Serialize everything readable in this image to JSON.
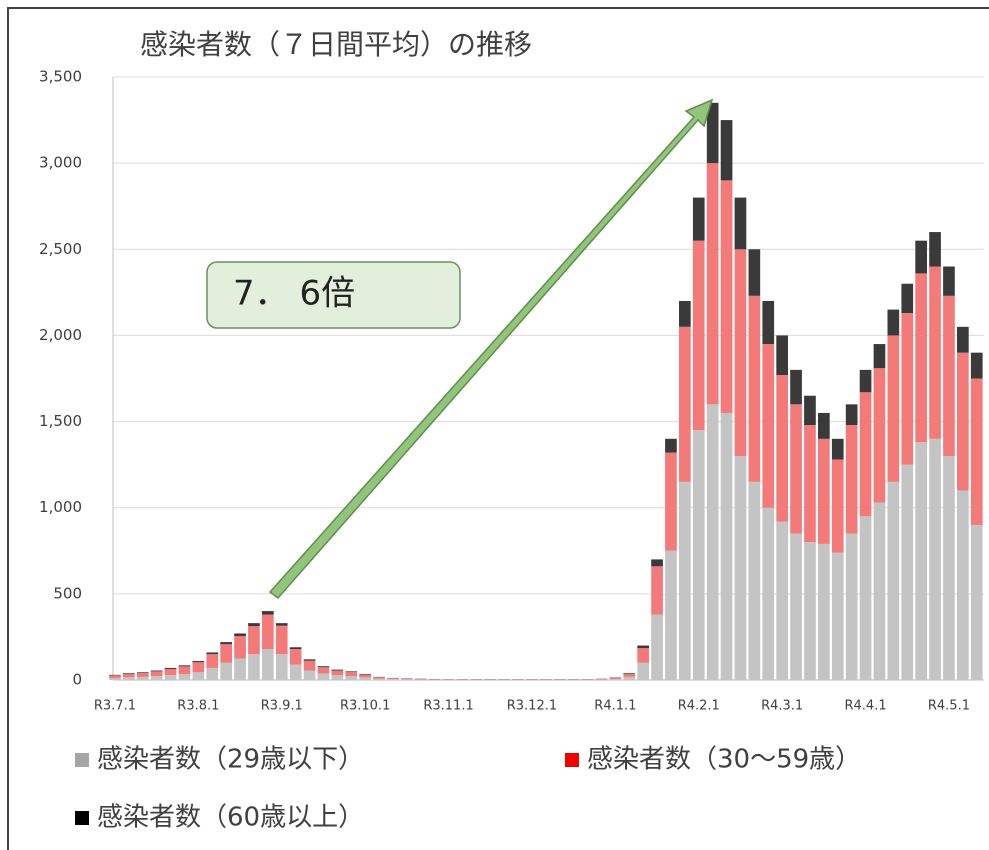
{
  "chart_data": {
    "type": "stacked_bar",
    "title": "感染者数（７日間平均）の推移",
    "annotation": "7．  6倍",
    "categories": [
      "R3.7.1",
      null,
      null,
      null,
      null,
      null,
      "R3.8.1",
      null,
      null,
      null,
      null,
      null,
      "R3.9.1",
      null,
      null,
      null,
      null,
      null,
      "R3.10.1",
      null,
      null,
      null,
      null,
      null,
      "R3.11.1",
      null,
      null,
      null,
      null,
      null,
      "R3.12.1",
      null,
      null,
      null,
      null,
      null,
      "R4.1.1",
      null,
      null,
      null,
      null,
      null,
      "R4.2.1",
      null,
      null,
      null,
      null,
      null,
      "R4.3.1",
      null,
      null,
      null,
      null,
      null,
      "R4.4.1",
      null,
      null,
      null,
      null,
      null,
      "R4.5.1",
      null,
      null
    ],
    "series": [
      {
        "name": "感染者数（29歳以下）",
        "color": "#c4c4c4",
        "legend_color": "#a6a6a6",
        "values": [
          12,
          16,
          18,
          22,
          28,
          35,
          45,
          70,
          100,
          125,
          150,
          180,
          150,
          90,
          55,
          38,
          28,
          22,
          15,
          8,
          5,
          4,
          3,
          2,
          2,
          2,
          2,
          2,
          2,
          2,
          2,
          2,
          2,
          2,
          2,
          3,
          6,
          18,
          100,
          380,
          750,
          1150,
          1450,
          1600,
          1550,
          1300,
          1150,
          1000,
          920,
          850,
          800,
          790,
          740,
          850,
          950,
          1030,
          1150,
          1250,
          1380,
          1400,
          1300,
          1100,
          900
        ]
      },
      {
        "name": "感染者数（30〜59歳）",
        "color": "#f47a7a",
        "legend_color": "#ee0000",
        "values": [
          15,
          20,
          23,
          28,
          36,
          44,
          58,
          80,
          108,
          130,
          163,
          200,
          165,
          90,
          57,
          36,
          27,
          24,
          17,
          8,
          6,
          5,
          4,
          3,
          2,
          2,
          2,
          2,
          2,
          2,
          2,
          2,
          2,
          2,
          2,
          4,
          7,
          18,
          85,
          280,
          570,
          900,
          1100,
          1400,
          1350,
          1200,
          1080,
          950,
          850,
          750,
          680,
          610,
          540,
          630,
          720,
          780,
          850,
          880,
          980,
          1000,
          930,
          800,
          850
        ]
      },
      {
        "name": "感染者数（60歳以上）",
        "color": "#3a3a3a",
        "legend_color": "#000000",
        "values": [
          3,
          4,
          4,
          5,
          6,
          6,
          7,
          10,
          12,
          15,
          17,
          20,
          15,
          10,
          8,
          6,
          5,
          4,
          3,
          2,
          1,
          1,
          1,
          1,
          1,
          1,
          1,
          1,
          1,
          1,
          1,
          1,
          1,
          1,
          1,
          1,
          2,
          4,
          15,
          40,
          80,
          150,
          250,
          350,
          350,
          300,
          270,
          250,
          230,
          200,
          170,
          150,
          120,
          120,
          130,
          140,
          150,
          170,
          190,
          200,
          170,
          150,
          150
        ]
      }
    ],
    "ylim": [
      0,
      3500
    ],
    "yticks": [
      0,
      500,
      {
        "value": 1000,
        "label": "1,000"
      },
      {
        "value": 1500,
        "label": "1,500"
      },
      {
        "value": 2000,
        "label": "2,000"
      },
      {
        "value": 2500,
        "label": "2,500"
      },
      {
        "value": 3000,
        "label": "3,000"
      },
      {
        "value": 3500,
        "label": "3,500"
      }
    ],
    "grid": true
  }
}
